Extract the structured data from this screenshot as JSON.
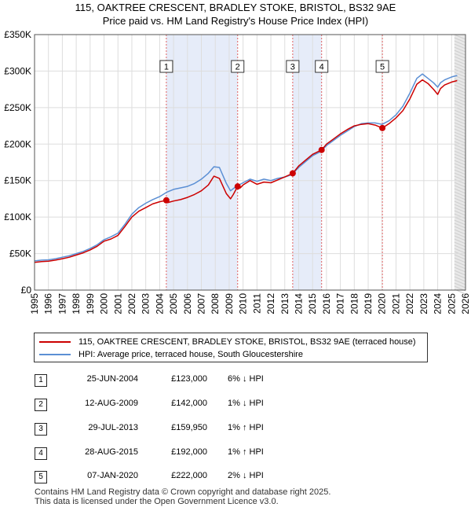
{
  "title_line1": "115, OAKTREE CRESCENT, BRADLEY STOKE, BRISTOL, BS32 9AE",
  "title_line2": "Price paid vs. HM Land Registry's House Price Index (HPI)",
  "chart_data": {
    "type": "line",
    "xlim": [
      1995,
      2026
    ],
    "ylim": [
      0,
      350000
    ],
    "y_ticks": [
      0,
      50000,
      100000,
      150000,
      200000,
      250000,
      300000,
      350000
    ],
    "y_tick_labels": [
      "£0",
      "£50K",
      "£100K",
      "£150K",
      "£200K",
      "£250K",
      "£300K",
      "£350K"
    ],
    "x_ticks": [
      1995,
      1996,
      1997,
      1998,
      1999,
      2000,
      2001,
      2002,
      2003,
      2004,
      2005,
      2006,
      2007,
      2008,
      2009,
      2010,
      2011,
      2012,
      2013,
      2014,
      2015,
      2016,
      2017,
      2018,
      2019,
      2020,
      2021,
      2022,
      2023,
      2024,
      2025,
      2026
    ],
    "forecast_start": 2025.2,
    "series": [
      {
        "name": "115, OAKTREE CRESCENT, BRADLEY STOKE, BRISTOL, BS32 9AE (terraced house)",
        "color": "#cc0000",
        "x": [
          1995.0,
          1995.5,
          1996.0,
          1996.5,
          1997.0,
          1997.5,
          1998.0,
          1998.5,
          1999.0,
          1999.5,
          2000.0,
          2000.5,
          2001.0,
          2001.5,
          2002.0,
          2002.5,
          2003.0,
          2003.5,
          2004.0,
          2004.48,
          2004.6,
          2005.0,
          2005.5,
          2006.0,
          2006.5,
          2007.0,
          2007.5,
          2007.9,
          2008.3,
          2008.8,
          2009.1,
          2009.3,
          2009.61,
          2009.8,
          2010.0,
          2010.5,
          2011.0,
          2011.5,
          2012.0,
          2012.5,
          2013.0,
          2013.57,
          2014.0,
          2014.5,
          2015.0,
          2015.65,
          2016.0,
          2016.5,
          2017.0,
          2017.5,
          2018.0,
          2018.5,
          2019.0,
          2019.5,
          2020.02,
          2020.5,
          2021.0,
          2021.5,
          2022.0,
          2022.5,
          2022.9,
          2023.3,
          2023.7,
          2024.0,
          2024.2,
          2024.5,
          2025.0,
          2025.4
        ],
        "values": [
          38000,
          39000,
          39500,
          41000,
          43000,
          45000,
          48000,
          51000,
          55000,
          60000,
          67000,
          70000,
          75000,
          87000,
          100000,
          108000,
          113000,
          118000,
          121000,
          123000,
          120000,
          122000,
          124000,
          127000,
          131000,
          136000,
          144000,
          156000,
          153000,
          132000,
          125000,
          131000,
          142000,
          140000,
          144000,
          150000,
          145000,
          148000,
          147000,
          151000,
          155000,
          159950,
          170000,
          178000,
          186000,
          192000,
          200000,
          207000,
          214000,
          220000,
          225000,
          227000,
          228000,
          226000,
          222000,
          228000,
          236000,
          246000,
          262000,
          282000,
          288000,
          283000,
          275000,
          268000,
          276000,
          281000,
          285000,
          287000
        ]
      },
      {
        "name": "HPI: Average price, terraced house, South Gloucestershire",
        "color": "#5b8fd4",
        "x": [
          1995.0,
          1995.5,
          1996.0,
          1996.5,
          1997.0,
          1997.5,
          1998.0,
          1998.5,
          1999.0,
          1999.5,
          2000.0,
          2000.5,
          2001.0,
          2001.5,
          2002.0,
          2002.5,
          2003.0,
          2003.5,
          2004.0,
          2004.5,
          2005.0,
          2005.5,
          2006.0,
          2006.5,
          2007.0,
          2007.5,
          2007.9,
          2008.3,
          2008.8,
          2009.1,
          2009.3,
          2009.6,
          2010.0,
          2010.5,
          2011.0,
          2011.5,
          2012.0,
          2012.5,
          2013.0,
          2013.5,
          2014.0,
          2014.5,
          2015.0,
          2015.6,
          2016.0,
          2016.5,
          2017.0,
          2017.5,
          2018.0,
          2018.5,
          2019.0,
          2019.5,
          2020.0,
          2020.5,
          2021.0,
          2021.5,
          2022.0,
          2022.5,
          2022.9,
          2023.3,
          2023.7,
          2024.0,
          2024.2,
          2024.5,
          2025.0,
          2025.4
        ],
        "values": [
          40000,
          41000,
          41500,
          43000,
          45000,
          47000,
          50000,
          53000,
          57000,
          62000,
          69000,
          73000,
          78000,
          90000,
          104000,
          113000,
          119000,
          124000,
          128000,
          134000,
          138000,
          140000,
          142000,
          146000,
          152000,
          160000,
          169000,
          168000,
          146000,
          136000,
          139000,
          143000,
          147000,
          152000,
          149000,
          152000,
          150000,
          153000,
          155000,
          158000,
          168000,
          176000,
          184000,
          190000,
          198000,
          205000,
          212000,
          218000,
          224000,
          228000,
          229000,
          229000,
          227000,
          232000,
          240000,
          252000,
          270000,
          290000,
          296000,
          290000,
          284000,
          278000,
          284000,
          288000,
          292000,
          294000
        ]
      }
    ],
    "sales": [
      {
        "label": "1",
        "x": 2004.48,
        "y": 123000
      },
      {
        "label": "2",
        "x": 2009.61,
        "y": 142000
      },
      {
        "label": "3",
        "x": 2013.57,
        "y": 159950
      },
      {
        "label": "4",
        "x": 2015.65,
        "y": 192000
      },
      {
        "label": "5",
        "x": 2020.02,
        "y": 222000
      }
    ],
    "shaded_ranges": [
      [
        2004.48,
        2009.61
      ],
      [
        2013.57,
        2015.65
      ]
    ]
  },
  "legend": {
    "red_label": "115, OAKTREE CRESCENT, BRADLEY STOKE, BRISTOL, BS32 9AE (terraced house)",
    "blue_label": "HPI: Average price, terraced house, South Gloucestershire"
  },
  "transactions": [
    {
      "num": "1",
      "date": "25-JUN-2004",
      "price": "£123,000",
      "pct": "6% ↓ HPI"
    },
    {
      "num": "2",
      "date": "12-AUG-2009",
      "price": "£142,000",
      "pct": "1% ↓ HPI"
    },
    {
      "num": "3",
      "date": "29-JUL-2013",
      "price": "£159,950",
      "pct": "1% ↑ HPI"
    },
    {
      "num": "4",
      "date": "28-AUG-2015",
      "price": "£192,000",
      "pct": "1% ↑ HPI"
    },
    {
      "num": "5",
      "date": "07-JAN-2020",
      "price": "£222,000",
      "pct": "2% ↓ HPI"
    }
  ],
  "footer_line1": "Contains HM Land Registry data © Crown copyright and database right 2025.",
  "footer_line2": "This data is licensed under the Open Government Licence v3.0."
}
